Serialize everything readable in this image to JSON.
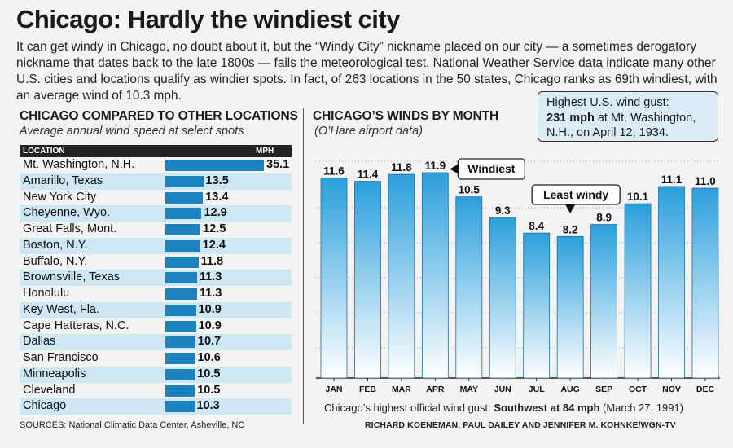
{
  "title": "Chicago: Hardly the windiest city",
  "intro": "It can get windy in Chicago, no doubt about it, but the “Windy City” nickname placed on our city — a sometimes derogatory nickname that dates back to the late 1800s — fails the meteorological test. National Weather Service data indicate many other U.S. cities and locations qualify as windier spots. In fact, of 263 locations in the 50 states, Chicago ranks as 69th windiest, with an average wind of 10.3 mph.",
  "left_section": {
    "title": "CHICAGO COMPARED TO OTHER LOCATIONS",
    "subtitle": "Average annual wind speed at select spots",
    "header_location": "LOCATION",
    "header_mph": "MPH",
    "sources": "SOURCES: National Climatic Data Center, Asheville, NC"
  },
  "right_section": {
    "title": "CHICAGO’S WINDS BY MONTH",
    "subtitle": "(O’Hare airport data)"
  },
  "gust_box": {
    "line1": "Highest U.S. wind gust:",
    "bold": "231 mph",
    "line2_rest": " at Mt. Washington,",
    "line3": "N.H., on April 12, 1934."
  },
  "footnote": {
    "prefix": "Chicago’s highest official wind gust: ",
    "bold": "Southwest at 84 mph",
    "suffix": "  (March 27, 1991)"
  },
  "credit": "RICHARD KOENEMAN, PAUL DAILEY AND JENNIFER M. KOHNKE/WGN-TV",
  "colors": {
    "bar_dark": "#1a82bf",
    "row_alt": "#cde7f5",
    "col_top": "#2b9fdc",
    "col_bottom": "#ffffff",
    "callout_bg": "#dcecf6"
  },
  "chart_data": [
    {
      "type": "bar",
      "orientation": "horizontal",
      "title": "CHICAGO COMPARED TO OTHER LOCATIONS",
      "subtitle": "Average annual wind speed at select spots",
      "categories": [
        "Mt. Washington, N.H.",
        "Amarillo, Texas",
        "New York City",
        "Cheyenne, Wyo.",
        "Great Falls, Mont.",
        "Boston, N.Y.",
        "Buffalo, N.Y.",
        "Brownsville, Texas",
        "Honolulu",
        "Key West, Fla.",
        "Cape Hatteras, N.C.",
        "Dallas",
        "San Francisco",
        "Minneapolis",
        "Cleveland",
        "Chicago"
      ],
      "values": [
        35.1,
        13.5,
        13.4,
        12.9,
        12.5,
        12.4,
        11.8,
        11.3,
        11.3,
        10.9,
        10.9,
        10.7,
        10.6,
        10.5,
        10.5,
        10.3
      ],
      "xlim": [
        0,
        35.1
      ]
    },
    {
      "type": "bar",
      "title": "CHICAGO’S WINDS BY MONTH",
      "subtitle": "(O’Hare airport data)",
      "categories": [
        "JAN",
        "FEB",
        "MAR",
        "APR",
        "MAY",
        "JUN",
        "JUL",
        "AUG",
        "SEP",
        "OCT",
        "NOV",
        "DEC"
      ],
      "values": [
        11.6,
        11.4,
        11.8,
        11.9,
        10.5,
        9.3,
        8.4,
        8.2,
        8.9,
        10.1,
        11.1,
        11.0
      ],
      "ylim": [
        0,
        11.9
      ],
      "grid": true,
      "annotations": [
        {
          "category": "APR",
          "text": "Windiest"
        },
        {
          "category": "AUG",
          "text": "Least windy"
        }
      ]
    }
  ]
}
